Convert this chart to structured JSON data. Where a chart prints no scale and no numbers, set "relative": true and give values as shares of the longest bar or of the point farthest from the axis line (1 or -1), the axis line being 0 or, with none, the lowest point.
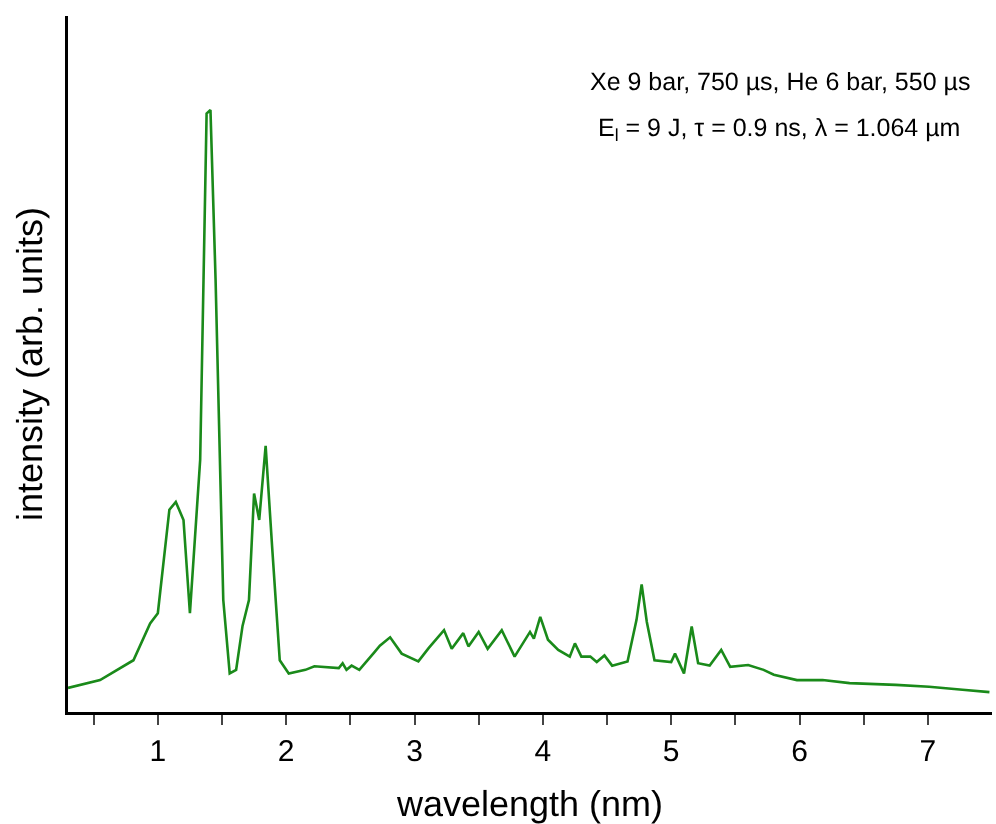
{
  "chart_data": {
    "type": "line",
    "relative": true,
    "xlabel": "wavelength (nm)",
    "ylabel": "intensity (arb. units)",
    "annotations": [
      "Xe 9 bar, 750 µs, He 6 bar, 550 µs",
      "E$_{l}$ = 9 J, τ = 0.9 ns, λ = 1.064 µm"
    ],
    "xlim": [
      0.3,
      7.5
    ],
    "xticks": [
      {
        "value": 0.5,
        "label": null
      },
      1,
      {
        "value": 1.5,
        "label": null
      },
      2,
      {
        "value": 2.5,
        "label": null
      },
      3,
      {
        "value": 3.5,
        "label": null
      },
      4,
      {
        "value": 4.5,
        "label": null
      },
      5,
      {
        "value": 5.5,
        "label": null
      },
      6,
      {
        "value": 6.5,
        "label": null
      },
      7
    ],
    "grid": false,
    "marker": "none",
    "line_style": "solid",
    "series": [
      {
        "color": "#1a8a1a",
        "x": [
          0.3,
          0.55,
          0.81,
          0.94,
          1.0,
          1.09,
          1.14,
          1.2,
          1.25,
          1.33,
          1.38,
          1.41,
          1.45,
          1.51,
          1.56,
          1.61,
          1.66,
          1.71,
          1.75,
          1.79,
          1.84,
          1.89,
          1.95,
          2.02,
          2.15,
          2.22,
          2.41,
          2.44,
          2.47,
          2.51,
          2.57,
          2.69,
          2.73,
          2.81,
          2.9,
          3.03,
          3.11,
          3.23,
          3.29,
          3.38,
          3.42,
          3.5,
          3.57,
          3.68,
          3.78,
          3.9,
          3.93,
          3.98,
          4.04,
          4.12,
          4.21,
          4.25,
          4.3,
          4.37,
          4.42,
          4.48,
          4.54,
          4.66,
          4.73,
          4.77,
          4.81,
          4.87,
          5.0,
          5.03,
          5.1,
          5.16,
          5.21,
          5.3,
          5.39,
          5.46,
          5.6,
          5.72,
          5.8,
          5.98,
          6.18,
          6.39,
          6.75,
          7.01,
          7.27,
          7.48
        ],
        "values": [
          0.04,
          0.053,
          0.086,
          0.147,
          0.164,
          0.336,
          0.349,
          0.319,
          0.164,
          0.419,
          0.994,
          1,
          0.718,
          0.186,
          0.064,
          0.07,
          0.143,
          0.186,
          0.363,
          0.319,
          0.442,
          0.276,
          0.086,
          0.064,
          0.07,
          0.076,
          0.073,
          0.081,
          0.07,
          0.077,
          0.07,
          0.1,
          0.11,
          0.124,
          0.097,
          0.084,
          0.106,
          0.136,
          0.105,
          0.131,
          0.109,
          0.133,
          0.105,
          0.136,
          0.092,
          0.133,
          0.122,
          0.158,
          0.12,
          0.103,
          0.092,
          0.114,
          0.092,
          0.092,
          0.083,
          0.094,
          0.077,
          0.084,
          0.153,
          0.212,
          0.15,
          0.086,
          0.083,
          0.097,
          0.064,
          0.142,
          0.081,
          0.077,
          0.103,
          0.075,
          0.078,
          0.07,
          0.062,
          0.053,
          0.053,
          0.048,
          0.045,
          0.042,
          0.037,
          0.033
        ]
      }
    ]
  }
}
